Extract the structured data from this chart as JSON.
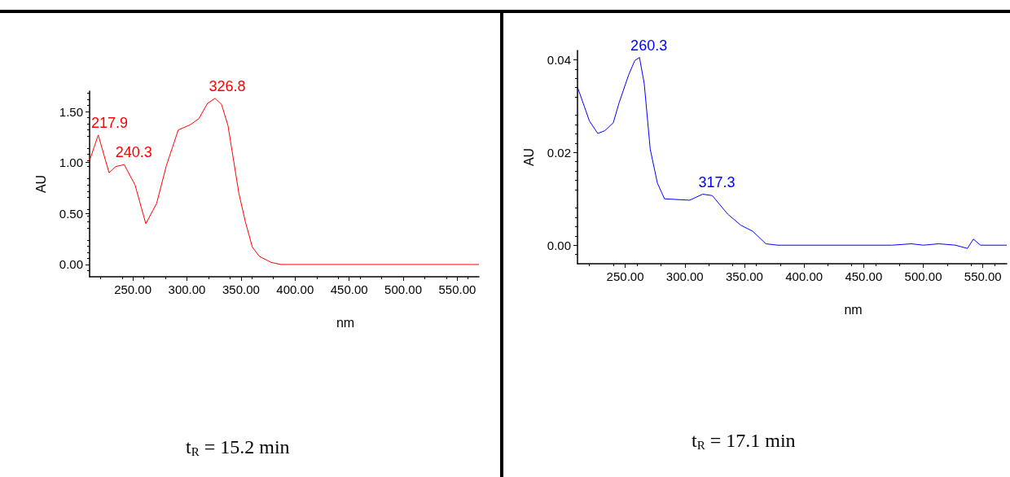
{
  "chart_data": [
    {
      "type": "line",
      "xlabel": "nm",
      "ylabel": "AU",
      "xlim": [
        210,
        570
      ],
      "ylim": [
        -0.12,
        1.7
      ],
      "xticks": [
        {
          "value": 250,
          "label": "250.00"
        },
        {
          "value": 300,
          "label": "300.00"
        },
        {
          "value": 350,
          "label": "350.00"
        },
        {
          "value": 400,
          "label": "400.00"
        },
        {
          "value": 450,
          "label": "450.00"
        },
        {
          "value": 500,
          "label": "500.00"
        },
        {
          "value": 550,
          "label": "550.00"
        }
      ],
      "yticks": [
        {
          "value": 0,
          "label": "0.00"
        },
        {
          "value": 0.5,
          "label": "0.50"
        },
        {
          "value": 1,
          "label": "1.00"
        },
        {
          "value": 1.5,
          "label": "1.50"
        }
      ],
      "marker": "none",
      "line_style": "solid",
      "series": [
        {
          "color": "#ff0000",
          "x": [
            210,
            218,
            228,
            234,
            242,
            252,
            262,
            272,
            281,
            292,
            303,
            311,
            319,
            326,
            332,
            338,
            343,
            348,
            354,
            360.5,
            367,
            378,
            387,
            570
          ],
          "values": [
            1.02,
            1.27,
            0.9,
            0.96,
            0.98,
            0.78,
            0.4,
            0.6,
            0.97,
            1.32,
            1.37,
            1.43,
            1.58,
            1.63,
            1.57,
            1.36,
            1.03,
            0.7,
            0.42,
            0.17,
            0.08,
            0.02,
            0,
            0
          ]
        }
      ],
      "annotations": [
        {
          "text": "217.9",
          "x": 217.9,
          "y": 1.27
        },
        {
          "text": "240.3",
          "x": 240.3,
          "y": 0.98
        },
        {
          "text": "326.8",
          "x": 326.8,
          "y": 1.63
        },
        "t$_{R}$ = 15.2 min"
      ]
    },
    {
      "type": "line",
      "xlabel": "nm",
      "ylabel": "AU",
      "xlim": [
        210,
        570
      ],
      "ylim": [
        -0.004,
        0.042
      ],
      "xticks": [
        {
          "value": 250,
          "label": "250.00"
        },
        {
          "value": 300,
          "label": "300.00"
        },
        {
          "value": 350,
          "label": "350.00"
        },
        {
          "value": 400,
          "label": "400.00"
        },
        {
          "value": 450,
          "label": "450.00"
        },
        {
          "value": 500,
          "label": "500.00"
        },
        {
          "value": 550,
          "label": "550.00"
        }
      ],
      "yticks": [
        {
          "value": 0,
          "label": "0.00"
        },
        {
          "value": 0.02,
          "label": "0.02"
        },
        {
          "value": 0.04,
          "label": "0.04"
        }
      ],
      "marker": "none",
      "line_style": "solid",
      "series": [
        {
          "color": "#0000ff",
          "x": [
            210,
            220,
            227,
            233,
            240,
            245,
            253,
            258,
            262,
            266,
            271,
            277,
            283,
            304,
            315,
            323,
            336,
            347,
            357,
            368,
            378,
            474,
            490,
            500,
            513,
            527,
            537,
            542,
            548,
            570
          ],
          "values": [
            0.0341,
            0.0268,
            0.0241,
            0.0247,
            0.0264,
            0.0308,
            0.0368,
            0.0398,
            0.0405,
            0.0348,
            0.0207,
            0.0134,
            0.01,
            0.0097,
            0.011,
            0.0107,
            0.0067,
            0.0043,
            0.003,
            0.0003,
            0,
            0,
            0.0003,
            0,
            0.0003,
            0,
            -0.0007,
            0.0013,
            0,
            0
          ]
        }
      ],
      "annotations": [
        {
          "text": "260.3",
          "x": 260.3,
          "y": 0.0405
        },
        {
          "text": "317.3",
          "x": 317.3,
          "y": 0.011
        },
        "t$_{R}$ = 17.1 min"
      ]
    }
  ]
}
